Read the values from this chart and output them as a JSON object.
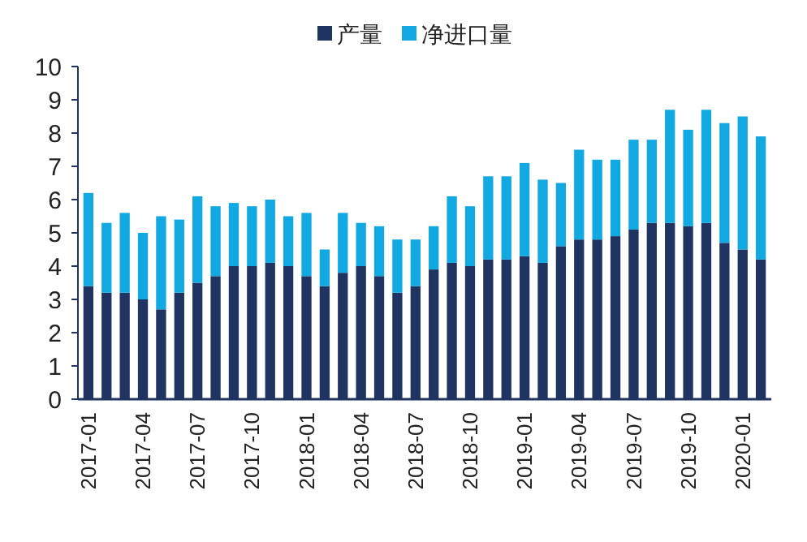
{
  "chart_data": {
    "type": "bar",
    "stacked": true,
    "legend": "top",
    "grid": false,
    "categories": [
      "2017-01",
      null,
      null,
      "2017-04",
      null,
      null,
      "2017-07",
      null,
      null,
      "2017-10",
      null,
      null,
      "2018-01",
      null,
      null,
      "2018-04",
      null,
      null,
      "2018-07",
      null,
      null,
      "2018-10",
      null,
      null,
      "2019-01",
      null,
      null,
      "2019-04",
      null,
      null,
      "2019-07",
      null,
      null,
      "2019-10",
      null,
      null,
      "2020-01",
      null
    ],
    "ylim": [
      0,
      10
    ],
    "yticks": [
      0,
      1,
      2,
      3,
      4,
      5,
      6,
      7,
      8,
      9,
      10
    ],
    "series": [
      {
        "name": "产量",
        "color": "#1f3461",
        "values": [
          3.4,
          3.2,
          3.2,
          3.0,
          2.7,
          3.2,
          3.5,
          3.7,
          4.0,
          4.0,
          4.1,
          4.0,
          3.7,
          3.4,
          3.8,
          4.0,
          3.7,
          3.2,
          3.4,
          3.9,
          4.1,
          4.0,
          4.2,
          4.2,
          4.3,
          4.1,
          4.6,
          4.8,
          4.8,
          4.9,
          5.1,
          5.3,
          5.3,
          5.2,
          5.3,
          4.7,
          4.5,
          4.2
        ]
      },
      {
        "name": "净进口量",
        "color": "#12a8e2",
        "values": [
          2.8,
          2.1,
          2.4,
          2.0,
          2.8,
          2.2,
          2.6,
          2.1,
          1.9,
          1.8,
          1.9,
          1.5,
          1.9,
          1.1,
          1.8,
          1.3,
          1.5,
          1.6,
          1.4,
          1.3,
          2.0,
          1.8,
          2.5,
          2.5,
          2.8,
          2.5,
          1.9,
          2.7,
          2.4,
          2.3,
          2.7,
          2.5,
          3.4,
          2.9,
          3.4,
          3.6,
          4.0,
          3.7
        ]
      }
    ]
  }
}
